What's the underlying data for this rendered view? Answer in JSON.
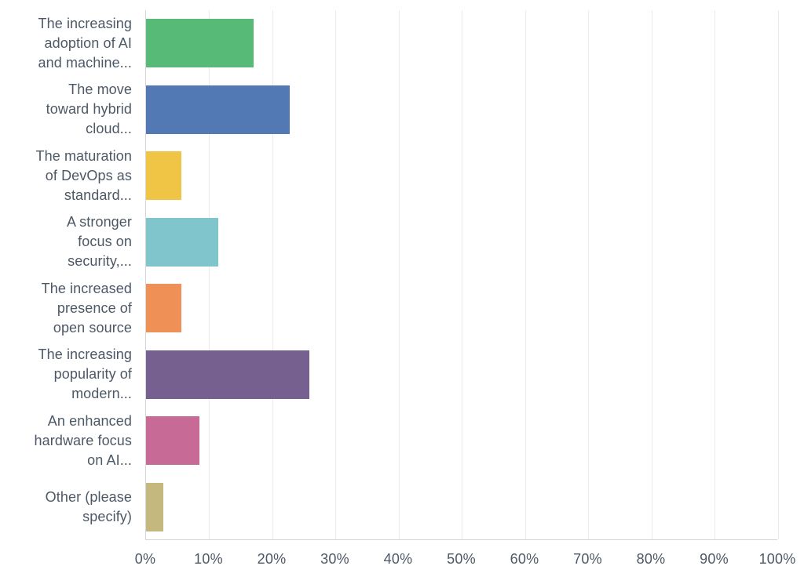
{
  "chart_data": {
    "type": "bar",
    "orientation": "horizontal",
    "title": "",
    "xlabel": "",
    "ylabel": "",
    "xlim": [
      0,
      100
    ],
    "grid": "vertical-light-gray",
    "legend": "none",
    "axis_color": "#d6d6d9",
    "gridline_color": "#ebebeb",
    "label_text_color": "#4d5866",
    "x_tick_labels": [
      "0%",
      "10%",
      "20%",
      "30%",
      "40%",
      "50%",
      "60%",
      "70%",
      "80%",
      "90%",
      "100%"
    ],
    "categories": [
      "The increasing adoption of AI and machine...",
      "The move toward hybrid cloud...",
      "The maturation of DevOps as standard...",
      "A stronger focus on security,...",
      "The increased presence of open source",
      "The increasing popularity of modern...",
      "An enhanced hardware focus on AI...",
      "Other (please specify)"
    ],
    "category_lines": [
      [
        "The increasing",
        "adoption of AI",
        "and machine..."
      ],
      [
        "The move",
        "toward hybrid",
        "cloud..."
      ],
      [
        "The maturation",
        "of DevOps as",
        "standard..."
      ],
      [
        "A stronger",
        "focus on",
        "security,..."
      ],
      [
        "The increased",
        "presence of",
        "open source"
      ],
      [
        "The increasing",
        "popularity of",
        "modern..."
      ],
      [
        "An enhanced",
        "hardware focus",
        "on AI..."
      ],
      [
        "Other (please",
        "specify)"
      ]
    ],
    "values": [
      17.0,
      22.7,
      5.6,
      11.4,
      5.6,
      25.8,
      8.5,
      2.7
    ],
    "value_unit": "%",
    "bar_colors": [
      "#57bb77",
      "#5379b5",
      "#f0c444",
      "#81c5cc",
      "#ef9156",
      "#76608f",
      "#c76b96",
      "#c5b87e"
    ]
  }
}
